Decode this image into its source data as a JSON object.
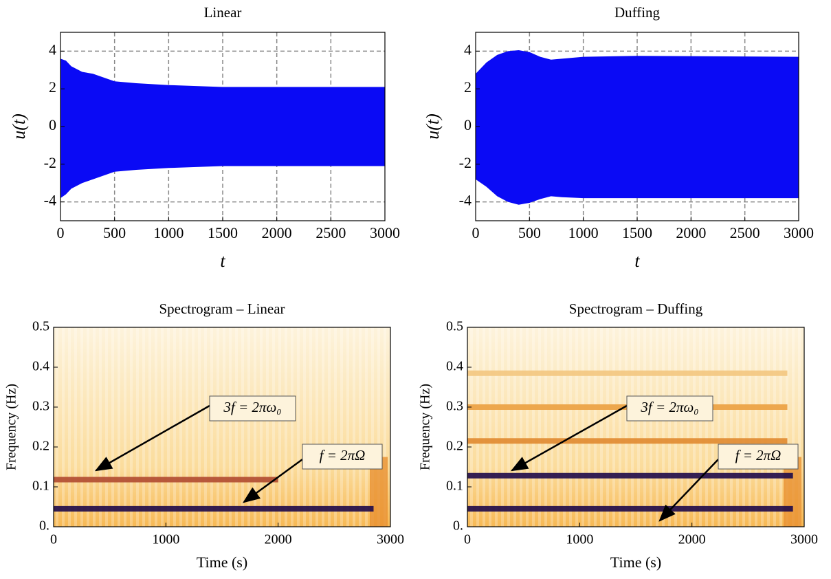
{
  "chart_data": [
    {
      "type": "area",
      "title": "Linear",
      "xlabel": "t",
      "ylabel": "u(t)",
      "color": "#0a0af5",
      "x": [
        0,
        50,
        100,
        200,
        300,
        400,
        500,
        700,
        1000,
        1500,
        2000,
        3000
      ],
      "upper": [
        3.6,
        3.5,
        3.2,
        2.9,
        2.8,
        2.6,
        2.4,
        2.3,
        2.2,
        2.1,
        2.1,
        2.1
      ],
      "lower": [
        -3.8,
        -3.6,
        -3.3,
        -3.0,
        -2.8,
        -2.6,
        -2.4,
        -2.3,
        -2.2,
        -2.1,
        -2.1,
        -2.1
      ],
      "xlim": [
        0,
        3000
      ],
      "ylim": [
        -5,
        5
      ],
      "xticks": [
        0,
        500,
        1000,
        1500,
        2000,
        2500,
        3000
      ],
      "yticks": [
        -4,
        -2,
        0,
        2,
        4
      ],
      "grid": true
    },
    {
      "type": "area",
      "title": "Duffing",
      "xlabel": "t",
      "ylabel": "u(t)",
      "color": "#0a0af5",
      "x": [
        0,
        100,
        200,
        300,
        400,
        500,
        600,
        700,
        800,
        1000,
        1500,
        3000
      ],
      "upper": [
        2.8,
        3.4,
        3.8,
        4.0,
        4.05,
        3.95,
        3.7,
        3.55,
        3.6,
        3.7,
        3.75,
        3.7
      ],
      "lower": [
        -2.8,
        -3.2,
        -3.7,
        -4.0,
        -4.15,
        -4.05,
        -3.85,
        -3.7,
        -3.75,
        -3.8,
        -3.8,
        -3.8
      ],
      "xlim": [
        0,
        3000
      ],
      "ylim": [
        -5,
        5
      ],
      "xticks": [
        0,
        500,
        1000,
        1500,
        2000,
        2500,
        3000
      ],
      "yticks": [
        -4,
        -2,
        0,
        2,
        4
      ],
      "grid": true
    },
    {
      "type": "spectrogram",
      "title": "Spectrogram – Linear",
      "xlabel": "Time (s)",
      "ylabel": "Frequency (Hz)",
      "ridges": [
        {
          "frequency": 0.045,
          "x": [
            0,
            2850
          ],
          "color": "#1e0a4a"
        },
        {
          "frequency": 0.118,
          "x": [
            0,
            2000
          ],
          "color": "#b04a30"
        }
      ],
      "annotations": [
        "3f = 2πω₀",
        "f = 2πΩ"
      ],
      "xlim": [
        0,
        3000
      ],
      "ylim": [
        0,
        0.5
      ],
      "xticks": [
        0,
        1000,
        2000,
        3000
      ],
      "yticks": [
        {
          "value": 0,
          "label": "0."
        },
        0.1,
        0.2,
        0.3,
        0.4,
        0.5
      ]
    },
    {
      "type": "spectrogram",
      "title": "Spectrogram – Duffing",
      "xlabel": "Time (s)",
      "ylabel": "Frequency (Hz)",
      "ridges": [
        {
          "frequency": 0.045,
          "x": [
            0,
            2900
          ],
          "color": "#1e0a4a"
        },
        {
          "frequency": 0.128,
          "x": [
            0,
            2900
          ],
          "color": "#1e0a4a"
        },
        {
          "frequency": 0.215,
          "x": [
            0,
            2850
          ],
          "color": "#e08a30"
        },
        {
          "frequency": 0.3,
          "x": [
            0,
            2850
          ],
          "color": "#eba040"
        },
        {
          "frequency": 0.385,
          "x": [
            0,
            2850
          ],
          "color": "#f3c680"
        }
      ],
      "annotations": [
        "3f = 2πω₀",
        "f = 2πΩ"
      ],
      "xlim": [
        0,
        3000
      ],
      "ylim": [
        0,
        0.5
      ],
      "xticks": [
        0,
        1000,
        2000,
        3000
      ],
      "yticks": [
        {
          "value": 0,
          "label": "0."
        },
        0.1,
        0.2,
        0.3,
        0.4,
        0.5
      ]
    }
  ]
}
